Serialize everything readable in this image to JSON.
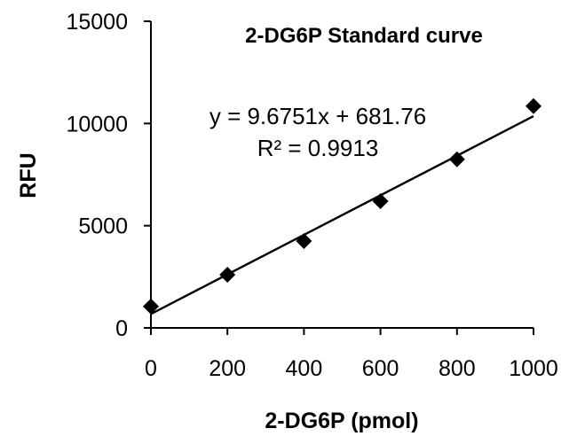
{
  "chart_data": {
    "type": "scatter",
    "title": "2-DG6P Standard curve",
    "xlabel": "2-DG6P (pmol)",
    "ylabel": "RFU",
    "xlim": [
      0,
      1000
    ],
    "ylim": [
      0,
      15000
    ],
    "x_ticks": [
      0,
      200,
      400,
      600,
      800,
      1000
    ],
    "y_ticks": [
      0,
      5000,
      10000,
      15000
    ],
    "x_tick_labels": [
      "0",
      "200",
      "400",
      "600",
      "800",
      "1000"
    ],
    "y_tick_labels": [
      "0",
      "5000",
      "10000",
      "15000"
    ],
    "grid": false,
    "marker_color": "#000000",
    "series": [
      {
        "x": [
          0,
          200,
          400,
          600,
          800,
          1000
        ],
        "y": [
          1050,
          2600,
          4250,
          6200,
          8250,
          10850
        ]
      }
    ],
    "trendline": {
      "slope": 9.6751,
      "intercept": 681.76
    },
    "annotations": {
      "equation": "y = 9.6751x + 681.76",
      "r_squared": "R² = 0.9913"
    }
  }
}
